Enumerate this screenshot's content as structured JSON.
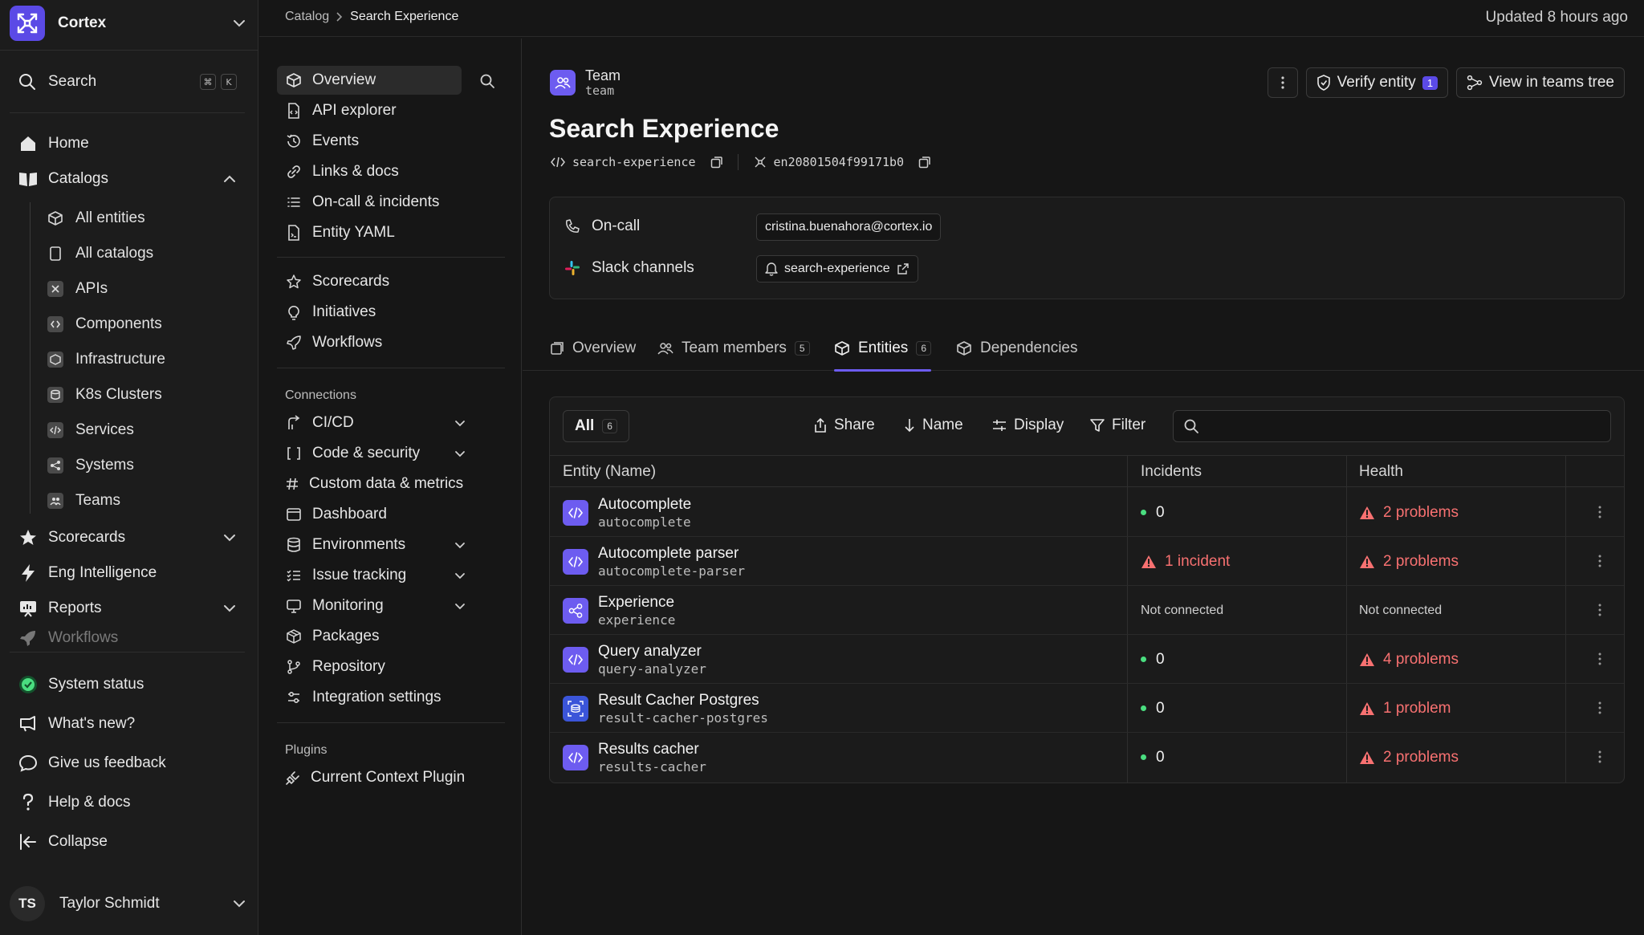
{
  "org": {
    "name": "Cortex"
  },
  "sidebar": {
    "search_label": "Search",
    "kbd": [
      "⌘",
      "K"
    ],
    "home": "Home",
    "catalogs": "Catalogs",
    "catalog_items": [
      "All entities",
      "All catalogs",
      "APIs",
      "Components",
      "Infrastructure",
      "K8s Clusters",
      "Services",
      "Systems",
      "Teams"
    ],
    "scorecards": "Scorecards",
    "eng_intelligence": "Eng Intelligence",
    "reports": "Reports",
    "workflows": "Workflows",
    "system_status": "System status",
    "whats_new": "What's new?",
    "feedback": "Give us feedback",
    "help": "Help & docs",
    "collapse": "Collapse",
    "user_initials": "TS",
    "user_name": "Taylor Schmidt"
  },
  "subnav": {
    "items": [
      "Overview",
      "API explorer",
      "Events",
      "Links & docs",
      "On-call & incidents",
      "Entity YAML"
    ],
    "items2": [
      "Scorecards",
      "Initiatives",
      "Workflows"
    ],
    "connections_heading": "Connections",
    "connections": [
      "CI/CD",
      "Code & security",
      "Custom data & metrics",
      "Dashboard",
      "Environments",
      "Issue tracking",
      "Monitoring",
      "Packages",
      "Repository",
      "Integration settings"
    ],
    "plugins_heading": "Plugins",
    "plugins": [
      "Current Context Plugin"
    ]
  },
  "topbar": {
    "breadcrumb": [
      "Catalog",
      "Search Experience"
    ],
    "updated": "Updated 8 hours ago"
  },
  "entity": {
    "type_label": "Team",
    "type_id": "team",
    "title": "Search Experience",
    "tag": "search-experience",
    "cid": "en20801504f99171b0",
    "verify_label": "Verify entity",
    "verify_count": "1",
    "teams_tree_label": "View in teams tree",
    "oncall_label": "On-call",
    "oncall_email": "cristina.buenahora@cortex.io",
    "slack_label": "Slack channels",
    "slack_channel": "search-experience"
  },
  "tabs": [
    {
      "label": "Overview"
    },
    {
      "label": "Team members",
      "count": "5"
    },
    {
      "label": "Entities",
      "count": "6"
    },
    {
      "label": "Dependencies"
    }
  ],
  "table": {
    "all_label": "All",
    "all_count": "6",
    "tools": [
      "Share",
      "Name",
      "Display",
      "Filter"
    ],
    "search_placeholder": "",
    "columns": [
      "Entity (Name)",
      "Incidents",
      "Health"
    ],
    "rows": [
      {
        "name": "Autocomplete",
        "id": "autocomplete",
        "icon": "code-icon",
        "incidents": "0",
        "health": "2 problems"
      },
      {
        "name": "Autocomplete parser",
        "id": "autocomplete-parser",
        "icon": "code-icon",
        "incidents": "1 incident",
        "health": "2 problems"
      },
      {
        "name": "Experience",
        "id": "experience",
        "icon": "share-nodes-icon",
        "incidents": "Not connected",
        "health": "Not connected"
      },
      {
        "name": "Query analyzer",
        "id": "query-analyzer",
        "icon": "code-icon",
        "incidents": "0",
        "health": "4 problems"
      },
      {
        "name": "Result Cacher Postgres",
        "id": "result-cacher-postgres",
        "icon": "database-icon",
        "incidents": "0",
        "health": "1 problem"
      },
      {
        "name": "Results cacher",
        "id": "results-cacher",
        "icon": "code-icon",
        "incidents": "0",
        "health": "2 problems"
      }
    ]
  },
  "colors": {
    "accent": "#6d5cf0",
    "ok": "#4ade80",
    "warn": "#f87171",
    "bg": "#161616"
  }
}
